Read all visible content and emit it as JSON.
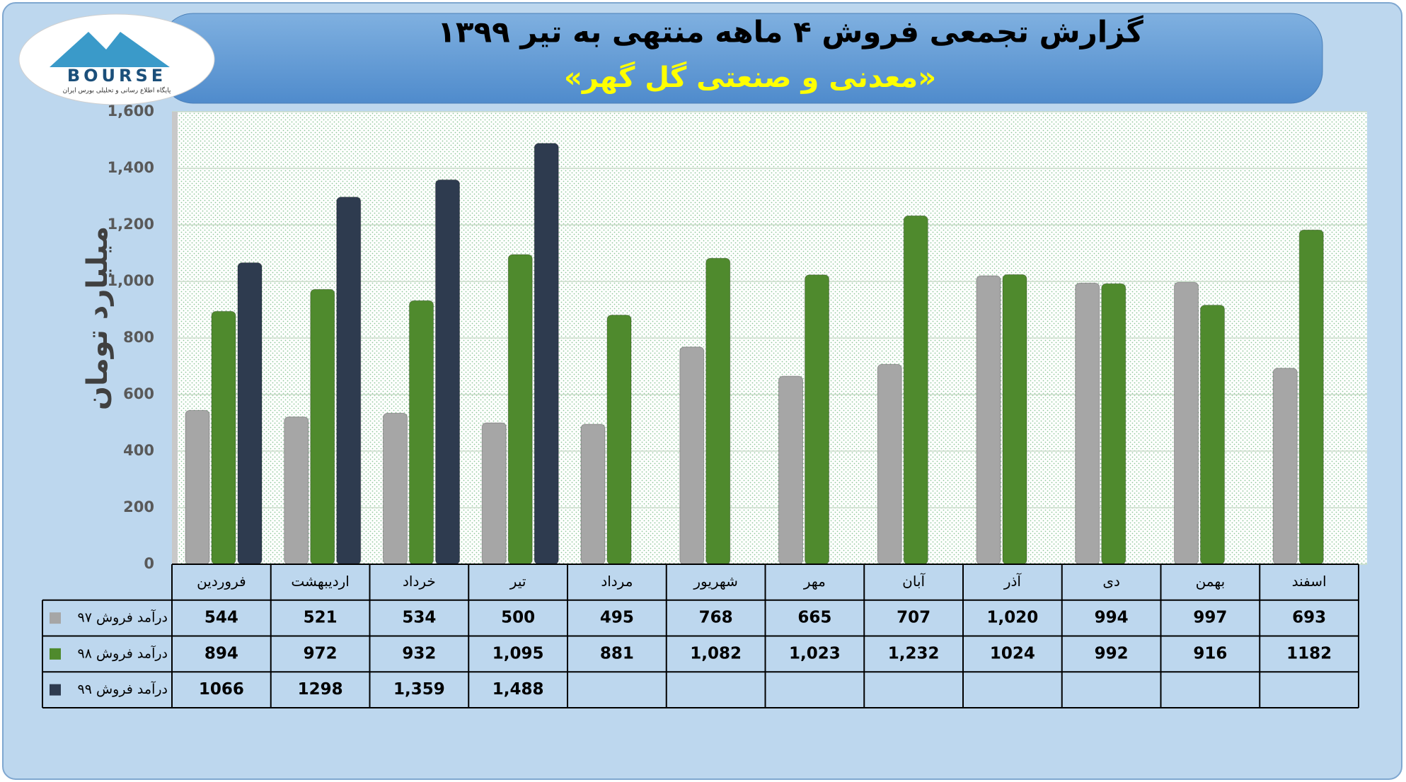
{
  "logo": {
    "text": "BOURSE",
    "caption": "پایگاه اطلاع رسانی و تحلیلی بورس ایران"
  },
  "chart_data": {
    "type": "bar",
    "title": "گزارش تجمعی فروش ۴ ماهه منتهی به تیر ۱۳۹۹",
    "subtitle": "«معدنی و صنعتی گل گهر»",
    "y_label": "میلیارد تومان",
    "categories": [
      "فروردین",
      "اردیبهشت",
      "خرداد",
      "تیر",
      "مرداد",
      "شهریور",
      "مهر",
      "آبان",
      "آذر",
      "دی",
      "بهمن",
      "اسفند"
    ],
    "series": [
      {
        "name": "درآمد فروش ۹۷",
        "color": "#a6a6a6",
        "values": [
          544,
          521,
          534,
          500,
          495,
          768,
          665,
          707,
          1020,
          994,
          997,
          693
        ],
        "value_labels": [
          "544",
          "521",
          "534",
          "500",
          "495",
          "768",
          "665",
          "707",
          "1,020",
          "994",
          "997",
          "693"
        ]
      },
      {
        "name": "درآمد فروش ۹۸",
        "color": "#4f8a2d",
        "values": [
          894,
          972,
          932,
          1095,
          881,
          1082,
          1023,
          1232,
          1024,
          992,
          916,
          1182
        ],
        "value_labels": [
          "894",
          "972",
          "932",
          "1,095",
          "881",
          "1,082",
          "1,023",
          "1,232",
          "1024",
          "992",
          "916",
          "1182"
        ]
      },
      {
        "name": "درآمد فروش ۹۹",
        "color": "#2e3b4f",
        "values": [
          1066,
          1298,
          1359,
          1488,
          null,
          null,
          null,
          null,
          null,
          null,
          null,
          null
        ],
        "value_labels": [
          "1066",
          "1298",
          "1,359",
          "1,488",
          null,
          null,
          null,
          null,
          null,
          null,
          null,
          null
        ]
      }
    ],
    "ylim": [
      0,
      1600
    ],
    "yticks": [
      0,
      200,
      400,
      600,
      800,
      {
        "value": 1000,
        "label": "1,000"
      },
      {
        "value": 1200,
        "label": "1,200"
      },
      {
        "value": 1400,
        "label": "1,400"
      },
      {
        "value": 1600,
        "label": "1,600"
      }
    ],
    "grid": true
  }
}
